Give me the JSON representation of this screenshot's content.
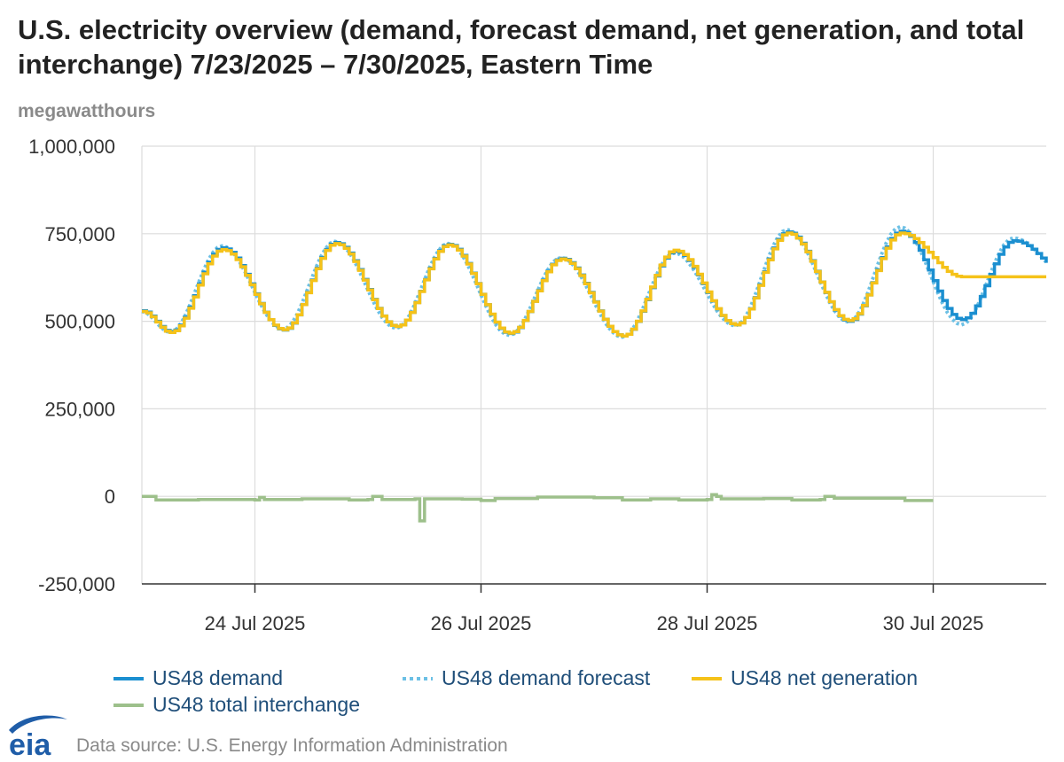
{
  "title": "U.S. electricity overview (demand, forecast demand, net generation, and total interchange) 7/23/2025 – 7/30/2025, Eastern Time",
  "y_unit_label": "megawatthours",
  "source": "Data source: U.S. Energy Information Administration",
  "logo_text": "eia",
  "colors": {
    "demand": "#1b8fd0",
    "forecast": "#6cc0e5",
    "net_generation": "#f5c219",
    "interchange": "#9dc08b",
    "grid": "#dcdcdc",
    "axis": "#333333",
    "logo": "#1f5da8"
  },
  "chart_data": {
    "type": "line",
    "ylim": [
      -250000,
      1000000
    ],
    "yticks": [
      -250000,
      0,
      250000,
      500000,
      750000,
      1000000
    ],
    "ytick_labels": [
      "-250,000",
      "0",
      "250,000",
      "500,000",
      "750,000",
      "1,000,000"
    ],
    "xlim": [
      "2025-07-23T00:00",
      "2025-07-31T00:00"
    ],
    "xticks": [
      "2025-07-24T00:00",
      "2025-07-26T00:00",
      "2025-07-28T00:00",
      "2025-07-30T00:00"
    ],
    "xtick_labels": [
      "24 Jul 2025",
      "26 Jul 2025",
      "28 Jul 2025",
      "30 Jul 2025"
    ],
    "grid": true,
    "legend_placement": "bottom",
    "series": [
      {
        "name": "US48 demand",
        "style": "step-solid",
        "x_start": "2025-07-23T00:00",
        "x_end": "2025-07-31T00:00",
        "daily_troughs": [
          {
            "date": "2025-07-23T06:00",
            "value": 470000
          },
          {
            "date": "2025-07-24T06:00",
            "value": 475000
          },
          {
            "date": "2025-07-25T06:00",
            "value": 485000
          },
          {
            "date": "2025-07-26T06:00",
            "value": 465000
          },
          {
            "date": "2025-07-27T06:00",
            "value": 458000
          },
          {
            "date": "2025-07-28T06:00",
            "value": 490000
          },
          {
            "date": "2025-07-29T06:00",
            "value": 500000
          },
          {
            "date": "2025-07-30T06:00",
            "value": 505000
          }
        ],
        "daily_peaks": [
          {
            "date": "2025-07-23T17:00",
            "value": 710000
          },
          {
            "date": "2025-07-24T17:00",
            "value": 725000
          },
          {
            "date": "2025-07-25T17:00",
            "value": 720000
          },
          {
            "date": "2025-07-26T17:00",
            "value": 680000
          },
          {
            "date": "2025-07-27T17:00",
            "value": 700000
          },
          {
            "date": "2025-07-28T17:00",
            "value": 755000
          },
          {
            "date": "2025-07-29T17:00",
            "value": 757000
          },
          {
            "date": "2025-07-30T17:00",
            "value": 730000
          }
        ]
      },
      {
        "name": "US48 demand forecast",
        "style": "dotted",
        "x_start": "2025-07-23T00:00",
        "x_end": "2025-07-31T00:00",
        "daily_troughs": [
          {
            "date": "2025-07-23T06:00",
            "value": 468000
          },
          {
            "date": "2025-07-24T06:00",
            "value": 478000
          },
          {
            "date": "2025-07-25T06:00",
            "value": 480000
          },
          {
            "date": "2025-07-26T06:00",
            "value": 460000
          },
          {
            "date": "2025-07-27T06:00",
            "value": 455000
          },
          {
            "date": "2025-07-28T06:00",
            "value": 487000
          },
          {
            "date": "2025-07-29T06:00",
            "value": 498000
          },
          {
            "date": "2025-07-30T06:00",
            "value": 490000
          }
        ],
        "daily_peaks": [
          {
            "date": "2025-07-23T17:00",
            "value": 715000
          },
          {
            "date": "2025-07-24T17:00",
            "value": 728000
          },
          {
            "date": "2025-07-25T17:00",
            "value": 722000
          },
          {
            "date": "2025-07-26T17:00",
            "value": 682000
          },
          {
            "date": "2025-07-27T17:00",
            "value": 695000
          },
          {
            "date": "2025-07-28T17:00",
            "value": 762000
          },
          {
            "date": "2025-07-29T17:00",
            "value": 770000
          },
          {
            "date": "2025-07-30T17:00",
            "value": 738000
          }
        ]
      },
      {
        "name": "US48 net generation",
        "style": "step-solid",
        "x_start": "2025-07-23T00:00",
        "x_end": "2025-07-30T23:00",
        "daily_troughs": [
          {
            "date": "2025-07-23T06:00",
            "value": 468000
          },
          {
            "date": "2025-07-24T06:00",
            "value": 476000
          },
          {
            "date": "2025-07-25T06:00",
            "value": 485000
          },
          {
            "date": "2025-07-26T06:00",
            "value": 466000
          },
          {
            "date": "2025-07-27T06:00",
            "value": 458000
          },
          {
            "date": "2025-07-28T06:00",
            "value": 490000
          },
          {
            "date": "2025-07-29T06:00",
            "value": 502000
          }
        ],
        "daily_peaks": [
          {
            "date": "2025-07-23T17:00",
            "value": 705000
          },
          {
            "date": "2025-07-24T17:00",
            "value": 722000
          },
          {
            "date": "2025-07-25T17:00",
            "value": 718000
          },
          {
            "date": "2025-07-26T17:00",
            "value": 678000
          },
          {
            "date": "2025-07-27T17:00",
            "value": 703000
          },
          {
            "date": "2025-07-28T17:00",
            "value": 752000
          },
          {
            "date": "2025-07-29T17:00",
            "value": 752000
          }
        ]
      },
      {
        "name": "US48 total interchange",
        "style": "step-solid",
        "points": [
          [
            "2025-07-23T00:00",
            0
          ],
          [
            "2025-07-23T02:00",
            0
          ],
          [
            "2025-07-23T03:00",
            -10000
          ],
          [
            "2025-07-23T12:00",
            -9000
          ],
          [
            "2025-07-24T00:00",
            -10000
          ],
          [
            "2025-07-24T01:00",
            -3000
          ],
          [
            "2025-07-24T02:00",
            -9000
          ],
          [
            "2025-07-24T10:00",
            -7000
          ],
          [
            "2025-07-24T20:00",
            -10000
          ],
          [
            "2025-07-25T00:00",
            -9000
          ],
          [
            "2025-07-25T01:00",
            0
          ],
          [
            "2025-07-25T02:00",
            0
          ],
          [
            "2025-07-25T03:00",
            -9000
          ],
          [
            "2025-07-25T10:00",
            -7000
          ],
          [
            "2025-07-25T11:00",
            -70000
          ],
          [
            "2025-07-25T12:00",
            -7000
          ],
          [
            "2025-07-25T20:00",
            -8000
          ],
          [
            "2025-07-26T00:00",
            -12000
          ],
          [
            "2025-07-26T03:00",
            -6000
          ],
          [
            "2025-07-26T12:00",
            -2000
          ],
          [
            "2025-07-27T00:00",
            -4000
          ],
          [
            "2025-07-27T06:00",
            -10000
          ],
          [
            "2025-07-27T12:00",
            -7000
          ],
          [
            "2025-07-27T18:00",
            -10000
          ],
          [
            "2025-07-28T00:00",
            -9000
          ],
          [
            "2025-07-28T01:00",
            5000
          ],
          [
            "2025-07-28T02:00",
            0
          ],
          [
            "2025-07-28T03:00",
            -7000
          ],
          [
            "2025-07-28T12:00",
            -6000
          ],
          [
            "2025-07-28T18:00",
            -10000
          ],
          [
            "2025-07-29T00:00",
            -9000
          ],
          [
            "2025-07-29T01:00",
            0
          ],
          [
            "2025-07-29T02:00",
            0
          ],
          [
            "2025-07-29T03:00",
            -5000
          ],
          [
            "2025-07-29T14:00",
            -5000
          ],
          [
            "2025-07-29T18:00",
            -12000
          ],
          [
            "2025-07-29T23:00",
            -12000
          ]
        ]
      }
    ]
  }
}
